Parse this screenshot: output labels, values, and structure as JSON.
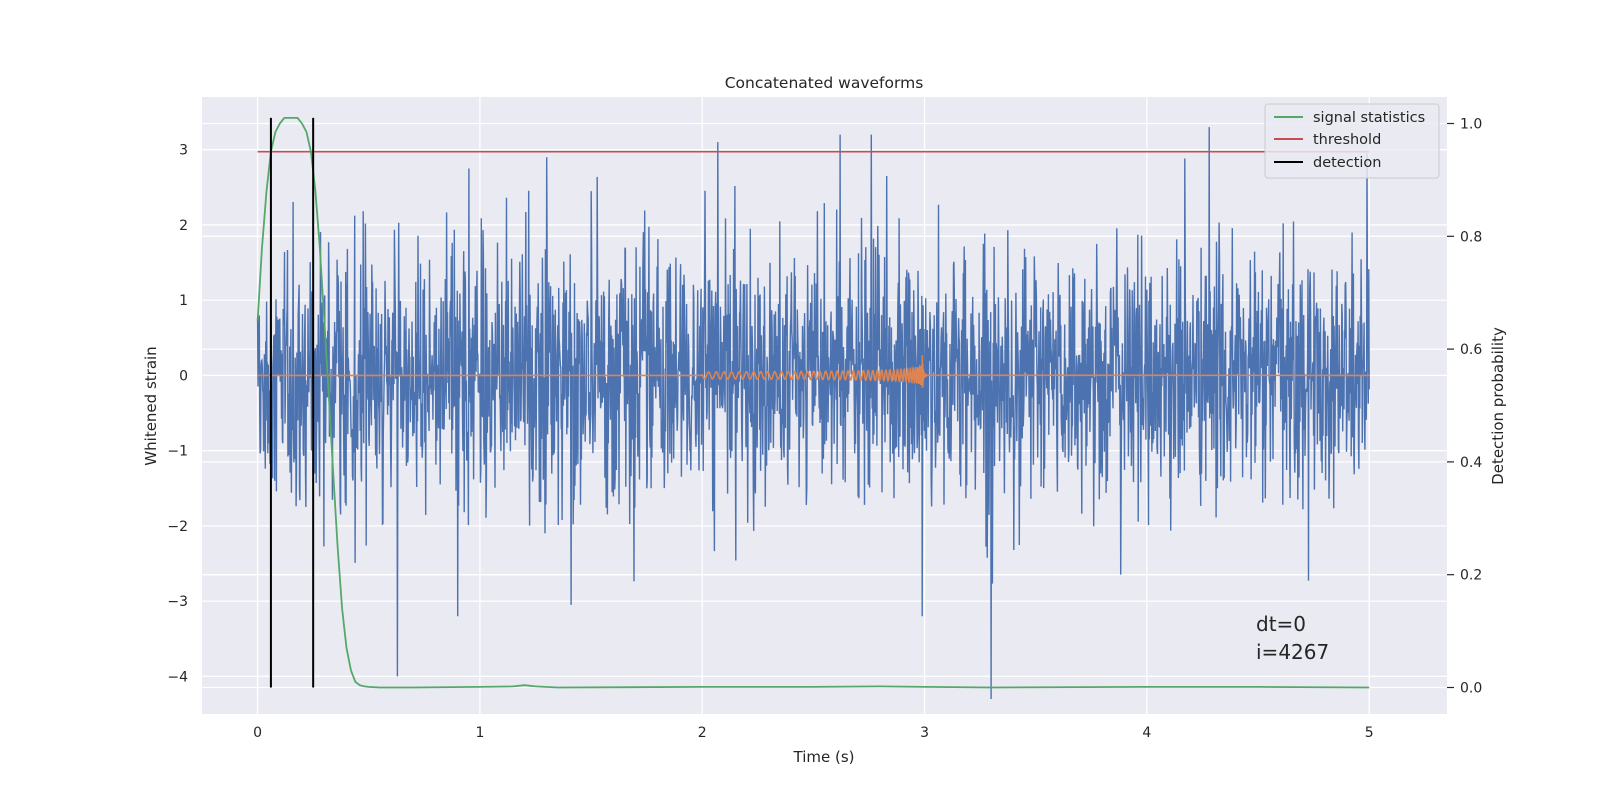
{
  "chart_data": {
    "type": "line",
    "title": "Concatenated waveforms",
    "xlabel": "Time (s)",
    "ylabel": "Whitened strain",
    "ylabel_right": "Detection probability",
    "xlim": [
      -0.25,
      5.35
    ],
    "ylim": [
      -4.5,
      3.7
    ],
    "ylim_right": [
      -0.047,
      1.047
    ],
    "x_ticks": [
      0,
      1,
      2,
      3,
      4,
      5
    ],
    "y_ticks": [
      -4,
      -3,
      -2,
      -1,
      0,
      1,
      2,
      3
    ],
    "y_ticks_right": [
      0.0,
      0.2,
      0.4,
      0.6,
      0.8,
      1.0
    ],
    "x_tick_labels": [
      "0",
      "1",
      "2",
      "3",
      "4",
      "5"
    ],
    "y_tick_labels": [
      "−4",
      "−3",
      "−2",
      "−1",
      "0",
      "1",
      "2",
      "3"
    ],
    "y_tick_labels_right": [
      "0.0",
      "0.2",
      "0.4",
      "0.6",
      "0.8",
      "1.0"
    ],
    "grid": true,
    "background": "#eaeaf2",
    "legend_position": "top-right",
    "legend": [
      {
        "label": "signal statistics",
        "color": "#55a868"
      },
      {
        "label": "threshold",
        "color": "#c44e52"
      },
      {
        "label": "detection",
        "color": "#000000"
      }
    ],
    "series": [
      {
        "style": "noise",
        "color": "#4c72b0",
        "axis": "left",
        "x_range": [
          0,
          5
        ],
        "band_typical": [
          -1.3,
          1.5
        ],
        "spikes": [
          {
            "x": 0.63,
            "y": -4.0
          },
          {
            "x": 0.9,
            "y": -3.2
          },
          {
            "x": 0.95,
            "y": 2.75
          },
          {
            "x": 1.5,
            "y": 2.45
          },
          {
            "x": 1.41,
            "y": -3.05
          },
          {
            "x": 2.07,
            "y": 3.1
          },
          {
            "x": 2.62,
            "y": 3.2
          },
          {
            "x": 2.76,
            "y": 3.2
          },
          {
            "x": 2.83,
            "y": 2.65
          },
          {
            "x": 2.99,
            "y": -3.2
          },
          {
            "x": 3.3,
            "y": -4.3
          },
          {
            "x": 4.28,
            "y": 3.3
          },
          {
            "x": 4.99,
            "y": 2.95
          }
        ]
      },
      {
        "style": "chirp",
        "color": "#dd8452",
        "axis": "left",
        "x_range": [
          2.0,
          2.99
        ],
        "peak_amplitude": 0.45,
        "baseline": 0
      },
      {
        "name": "signal statistics",
        "color": "#55a868",
        "axis": "right",
        "x": [
          0.0,
          0.02,
          0.04,
          0.06,
          0.08,
          0.1,
          0.12,
          0.14,
          0.16,
          0.18,
          0.2,
          0.22,
          0.24,
          0.26,
          0.28,
          0.3,
          0.32,
          0.34,
          0.36,
          0.38,
          0.4,
          0.42,
          0.44,
          0.46,
          0.48,
          0.5,
          0.55,
          0.7,
          1.0,
          1.15,
          1.2,
          1.25,
          1.35,
          2.0,
          2.5,
          2.8,
          3.0,
          3.3,
          4.0,
          4.5,
          5.0
        ],
        "y": [
          0.65,
          0.78,
          0.88,
          0.95,
          0.985,
          1.0,
          1.01,
          1.01,
          1.01,
          1.01,
          1.0,
          0.985,
          0.95,
          0.88,
          0.78,
          0.65,
          0.52,
          0.38,
          0.25,
          0.14,
          0.07,
          0.03,
          0.01,
          0.004,
          0.002,
          0.001,
          0.0,
          0.0,
          0.001,
          0.002,
          0.004,
          0.002,
          0.0,
          0.001,
          0.001,
          0.002,
          0.001,
          0.0,
          0.001,
          0.001,
          0.0
        ]
      },
      {
        "name": "threshold",
        "color": "#c44e52",
        "axis": "right",
        "x": [
          0,
          5.0
        ],
        "y": [
          0.95,
          0.95
        ]
      }
    ],
    "detections": [
      0.06,
      0.25
    ],
    "annotations": [
      "dt=0",
      "i=4267"
    ]
  }
}
